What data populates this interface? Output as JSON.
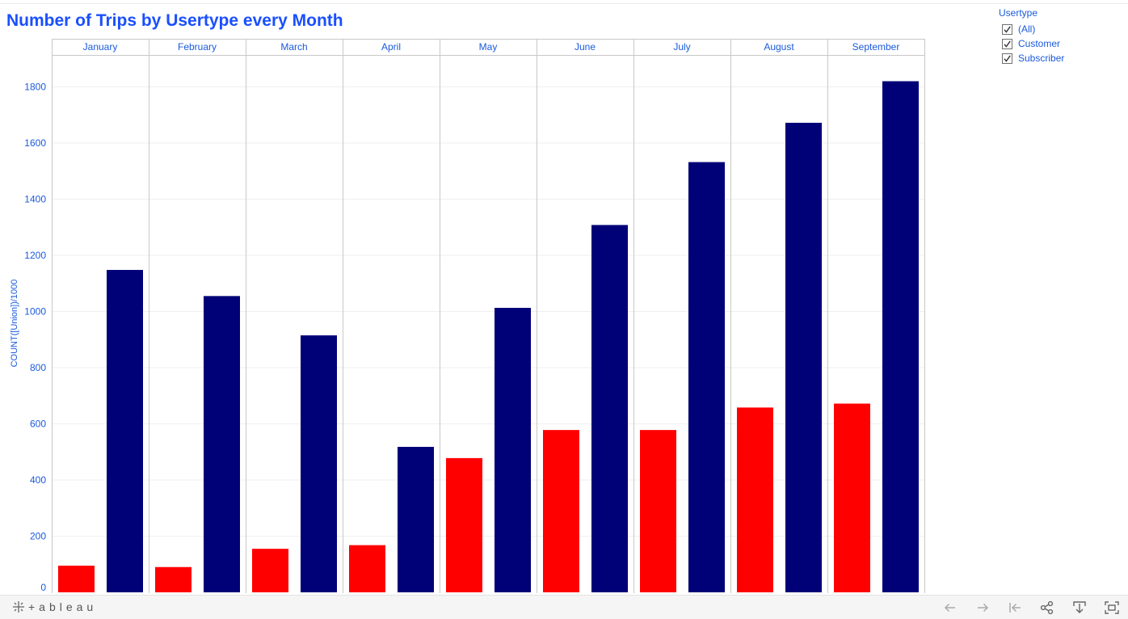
{
  "title": "Number of Trips by Usertype every Month",
  "legend": {
    "title": "Usertype",
    "items": [
      {
        "label": "(All)",
        "checked": true
      },
      {
        "label": "Customer",
        "checked": true
      },
      {
        "label": "Subscriber",
        "checked": true
      }
    ]
  },
  "toolbar": {
    "brand_text": "+ableau",
    "icons": [
      "undo-icon",
      "redo-icon",
      "revert-icon",
      "share-icon",
      "download-icon",
      "fullscreen-icon"
    ]
  },
  "colors": {
    "title": "#1a4fff",
    "axis_text": "#1a5adc",
    "customer": "#ff0000",
    "subscriber": "#000077",
    "divider": "#c8c8c8",
    "gridline": "#efefef"
  },
  "chart_data": {
    "type": "bar",
    "title": "Number of Trips by Usertype every Month",
    "categories": [
      "January",
      "February",
      "March",
      "April",
      "May",
      "June",
      "July",
      "August",
      "September"
    ],
    "series": [
      {
        "name": "Customer",
        "color": "#ff0000",
        "values": [
          95,
          90,
          155,
          168,
          478,
          578,
          578,
          658,
          672
        ]
      },
      {
        "name": "Subscriber",
        "color": "#000077",
        "values": [
          1148,
          1055,
          915,
          518,
          1013,
          1308,
          1532,
          1672,
          1820
        ]
      }
    ],
    "ylabel": "COUNT([Union])/1000",
    "xlabel": "",
    "yticks": [
      0,
      200,
      400,
      600,
      800,
      1000,
      1200,
      1400,
      1600,
      1800
    ],
    "ylim": [
      0,
      1920
    ],
    "grid": true
  }
}
